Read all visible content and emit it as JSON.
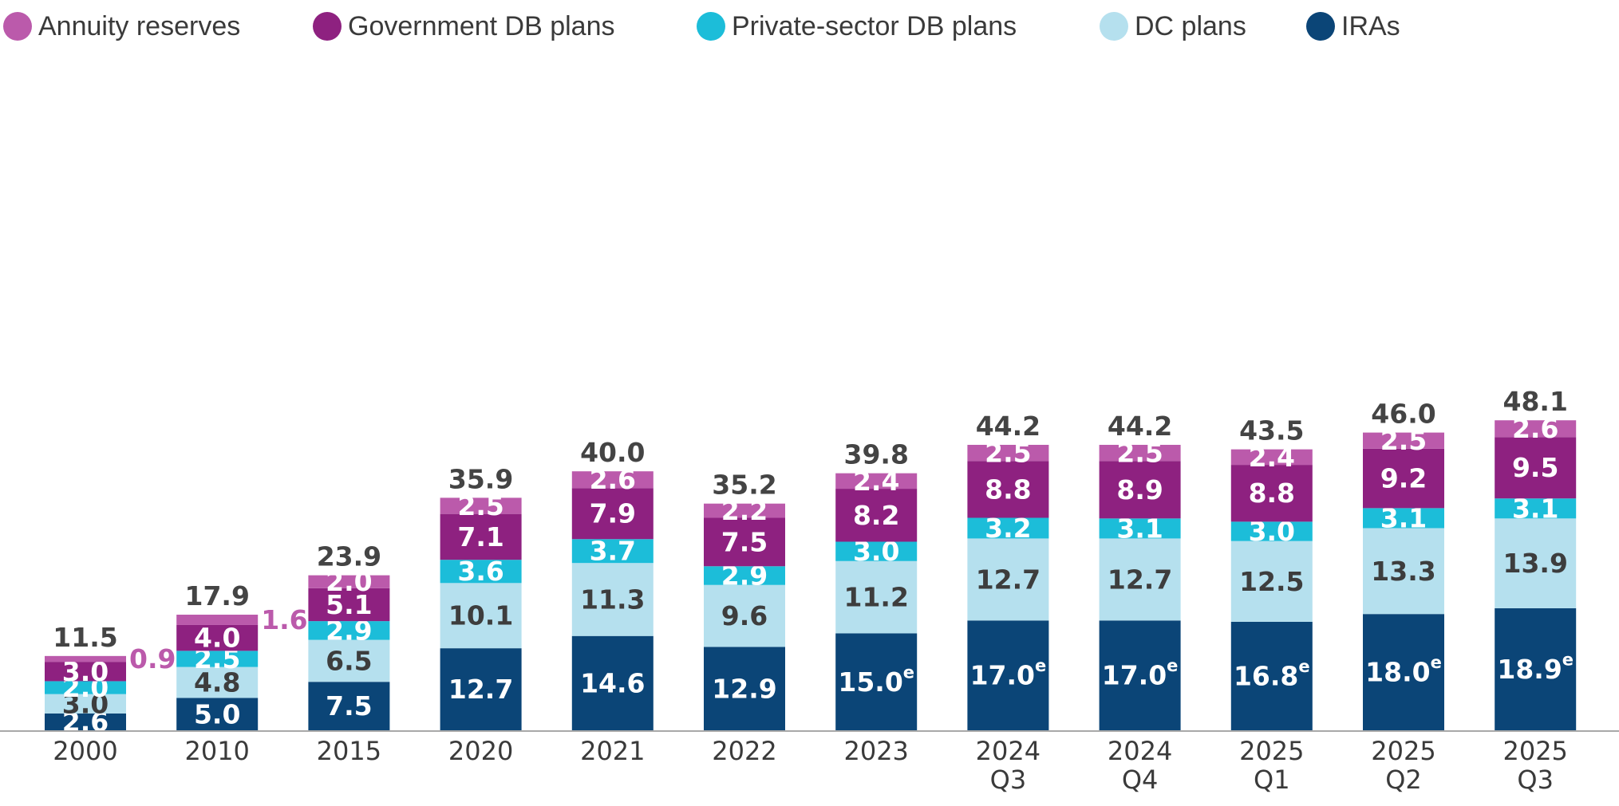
{
  "chart_data": {
    "type": "bar",
    "stacked": true,
    "categories": [
      [
        "2000"
      ],
      [
        "2010"
      ],
      [
        "2015"
      ],
      [
        "2020"
      ],
      [
        "2021"
      ],
      [
        "2022"
      ],
      [
        "2023"
      ],
      [
        "2024",
        "Q3"
      ],
      [
        "2024",
        "Q4"
      ],
      [
        "2025",
        "Q1"
      ],
      [
        "2025",
        "Q2"
      ],
      [
        "2025",
        "Q3"
      ]
    ],
    "series": [
      {
        "name": "IRAs",
        "color": "#0b4577",
        "text_color": "#ffffff",
        "values": [
          2.6,
          5.0,
          7.5,
          12.7,
          14.6,
          12.9,
          15.0,
          17.0,
          17.0,
          16.8,
          18.0,
          18.9
        ],
        "labels": [
          "2.6",
          "5.0",
          "7.5",
          "12.7",
          "14.6",
          "12.9",
          "15.0",
          "17.0",
          "17.0",
          "16.8",
          "18.0",
          "18.9"
        ],
        "estimated": [
          false,
          false,
          false,
          false,
          false,
          false,
          true,
          true,
          true,
          true,
          true,
          true
        ],
        "estimate_marker": "e"
      },
      {
        "name": "DC plans",
        "color": "#b5e0ee",
        "text_color": "#3d3d3d",
        "values": [
          3.0,
          4.8,
          6.5,
          10.1,
          11.3,
          9.6,
          11.2,
          12.7,
          12.7,
          12.5,
          13.3,
          13.9
        ],
        "labels": [
          "3.0",
          "4.8",
          "6.5",
          "10.1",
          "11.3",
          "9.6",
          "11.2",
          "12.7",
          "12.7",
          "12.5",
          "13.3",
          "13.9"
        ]
      },
      {
        "name": "Private-sector DB plans",
        "color": "#1cbdd9",
        "text_color": "#ffffff",
        "values": [
          2.0,
          2.5,
          2.9,
          3.6,
          3.7,
          2.9,
          3.0,
          3.2,
          3.1,
          3.0,
          3.1,
          3.1
        ],
        "labels": [
          "2.0",
          "2.5",
          "2.9",
          "3.6",
          "3.7",
          "2.9",
          "3.0",
          "3.2",
          "3.1",
          "3.0",
          "3.1",
          "3.1"
        ]
      },
      {
        "name": "Government DB plans",
        "color": "#8e2180",
        "text_color": "#ffffff",
        "values": [
          3.0,
          4.0,
          5.1,
          7.1,
          7.9,
          7.5,
          8.2,
          8.8,
          8.9,
          8.8,
          9.2,
          9.5
        ],
        "labels": [
          "3.0",
          "4.0",
          "5.1",
          "7.1",
          "7.9",
          "7.5",
          "8.2",
          "8.8",
          "8.9",
          "8.8",
          "9.2",
          "9.5"
        ]
      },
      {
        "name": "Annuity reserves",
        "color": "#bb5aab",
        "text_color": "#ffffff",
        "values": [
          0.9,
          1.6,
          2.0,
          2.5,
          2.6,
          2.2,
          2.4,
          2.5,
          2.5,
          2.4,
          2.5,
          2.6
        ],
        "labels": [
          "0.9",
          "1.6",
          "2.0",
          "2.5",
          "2.6",
          "2.2",
          "2.4",
          "2.5",
          "2.5",
          "2.4",
          "2.5",
          "2.6"
        ],
        "label_outside": [
          true,
          true,
          false,
          false,
          false,
          false,
          false,
          false,
          false,
          false,
          false,
          false
        ]
      }
    ],
    "totals": [
      "11.5",
      "17.9",
      "23.9",
      "35.9",
      "40.0",
      "35.2",
      "39.8",
      "44.2",
      "44.2",
      "43.5",
      "46.0",
      "48.1"
    ],
    "legend_order": [
      "Annuity reserves",
      "Government DB plans",
      "Private-sector DB plans",
      "DC plans",
      "IRAs"
    ],
    "legend_position": "top",
    "ylim": [
      0,
      53
    ],
    "title": "",
    "xlabel": "",
    "ylabel": "",
    "grid": false
  }
}
